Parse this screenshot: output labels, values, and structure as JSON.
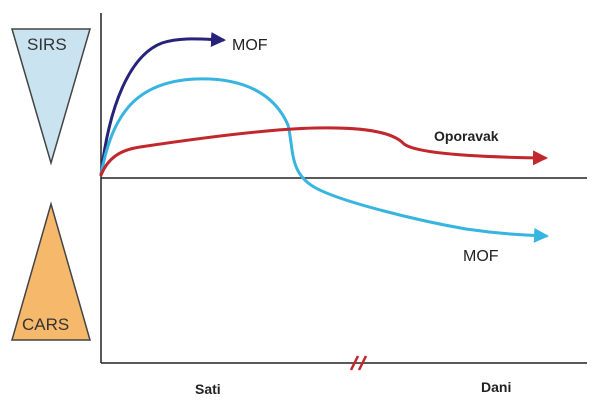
{
  "triangles": {
    "sirs": {
      "label": "SIRS",
      "fill": "#c9e3f0"
    },
    "cars": {
      "label": "CARS",
      "fill": "#f6b96b"
    }
  },
  "curves": {
    "mof_early": {
      "label": "MOF",
      "color": "#27237a"
    },
    "recovery": {
      "label": "Oporavak",
      "color": "#c1272d"
    },
    "mof_late": {
      "label": "MOF",
      "color": "#37b4e0"
    }
  },
  "axis": {
    "left_label": "Sati",
    "right_label": "Dani",
    "break_mark": "//",
    "break_color": "#c1272d"
  }
}
